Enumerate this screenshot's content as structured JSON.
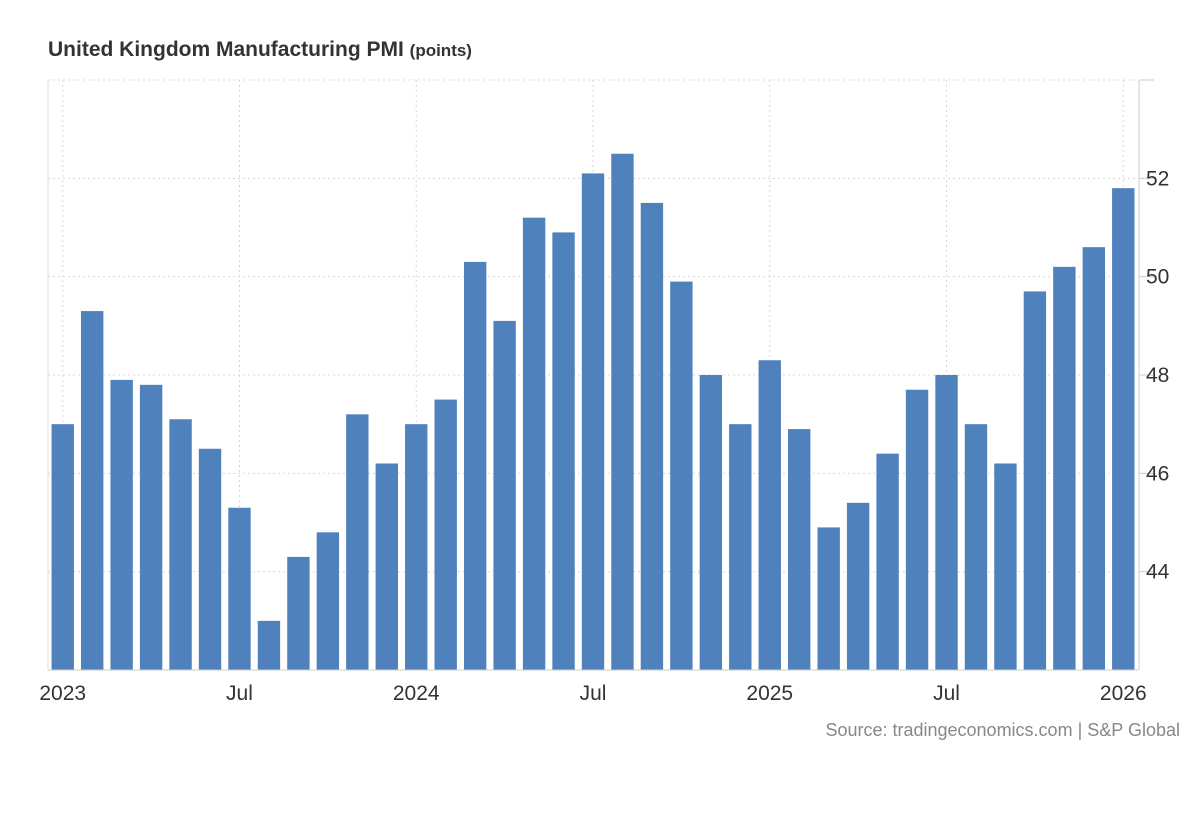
{
  "chart_data": {
    "type": "bar",
    "title": "United Kingdom Manufacturing PMI",
    "unit": "(points)",
    "xlabel": "",
    "ylabel": "",
    "ylim": [
      42,
      54
    ],
    "yticks": [
      44,
      46,
      48,
      50,
      52
    ],
    "ytick_labels": [
      "44",
      "46",
      "48",
      "50",
      "52"
    ],
    "grid": true,
    "x_tick_labels": [
      {
        "index": 0,
        "label": "2023"
      },
      {
        "index": 6,
        "label": "Jul"
      },
      {
        "index": 12,
        "label": "2024"
      },
      {
        "index": 18,
        "label": "Jul"
      },
      {
        "index": 24,
        "label": "2025"
      },
      {
        "index": 30,
        "label": "Jul"
      },
      {
        "index": 36,
        "label": "2026"
      }
    ],
    "categories": [
      "Jan 2023",
      "Feb 2023",
      "Mar 2023",
      "Apr 2023",
      "May 2023",
      "Jun 2023",
      "Jul 2023",
      "Aug 2023",
      "Sep 2023",
      "Oct 2023",
      "Nov 2023",
      "Dec 2023",
      "Jan 2024",
      "Feb 2024",
      "Mar 2024",
      "Apr 2024",
      "May 2024",
      "Jun 2024",
      "Jul 2024",
      "Aug 2024",
      "Sep 2024",
      "Oct 2024",
      "Nov 2024",
      "Dec 2024",
      "Jan 2025",
      "Feb 2025",
      "Mar 2025",
      "Apr 2025",
      "May 2025",
      "Jun 2025",
      "Jul 2025",
      "Aug 2025",
      "Sep 2025",
      "Oct 2025",
      "Nov 2025",
      "Dec 2025",
      "Jan 2026"
    ],
    "values": [
      47.0,
      49.3,
      47.9,
      47.8,
      47.1,
      46.5,
      45.3,
      43.0,
      44.3,
      44.8,
      47.2,
      46.2,
      47.0,
      47.5,
      50.3,
      49.1,
      51.2,
      50.9,
      52.1,
      52.5,
      51.5,
      49.9,
      48.0,
      47.0,
      48.3,
      46.9,
      44.9,
      45.4,
      46.4,
      47.7,
      48.0,
      47.0,
      46.2,
      49.7,
      50.2,
      50.6,
      51.8
    ],
    "bar_color": "#4f81bd"
  },
  "source": {
    "prefix": "Source: ",
    "site": "tradingeconomics.com",
    "separator": " | ",
    "provider": "S&P Global"
  }
}
